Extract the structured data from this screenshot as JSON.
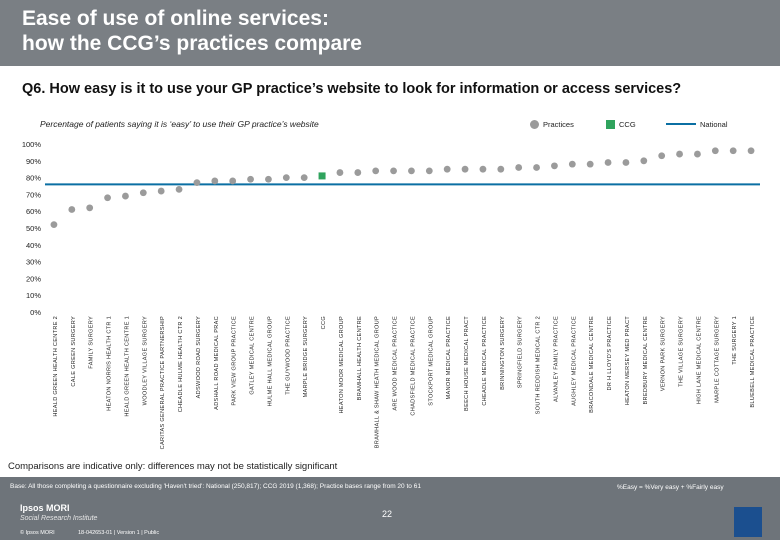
{
  "header": {
    "title_line1": "Ease of use of online services:",
    "title_line2": "how the CCG’s practices compare"
  },
  "question": "Q6. How easy is it to use your GP practice’s website to look for information or access services?",
  "subtitle": "Percentage of patients saying it is ‘easy’ to use their GP practice’s website",
  "legend": {
    "practices": "Practices",
    "ccg": "CCG",
    "national": "National"
  },
  "colors": {
    "practice": "#9b9b9b",
    "ccg": "#2fa35d",
    "national": "#0b6fa3",
    "header": "#7a7f84",
    "footer": "#6e747a"
  },
  "chart_data": {
    "type": "scatter",
    "title": "",
    "xlabel": "",
    "ylabel": "",
    "ylim": [
      0,
      100
    ],
    "yticks": [
      "0%",
      "10%",
      "20%",
      "30%",
      "40%",
      "50%",
      "60%",
      "70%",
      "80%",
      "90%",
      "100%"
    ],
    "national_value": 76,
    "categories": [
      "HEALD GREEN HEALTH CENTRE 2",
      "CALE GREEN SURGERY",
      "FAMILY SURGERY",
      "HEATON NORRIS HEALTH CTR 1",
      "HEALD GREEN HEALTH CENTRE 1",
      "WOODLEY VILLAGE SURGERY",
      "CARITAS GENERAL PRACTICE PARTNERSHIP",
      "CHEADLE HULME HEALTH CTR 2",
      "ADSWOOD ROAD SURGERY",
      "ADSHALL ROAD MEDICAL PRAC",
      "PARK VIEW GROUP PRACTICE",
      "GATLEY MEDICAL CENTRE",
      "HULME HALL MEDICAL GROUP",
      "THE GUYWOOD PRACTICE",
      "MARPLE BRIDGE SURGERY",
      "CCG",
      "HEATON MOOR MEDICAL GROUP",
      "BRAMHALL HEALTH CENTRE",
      "BRAMHALL & SHAW HEATH MEDICAL GROUP",
      "ARE WOOD MEDICAL PRACTICE",
      "CHADSFIELD MEDICAL PRACTICE",
      "STOCKPORT MEDICAL GROUP",
      "MANOR MEDICAL PRACTICE",
      "BEECH HOUSE MEDICAL PRACT",
      "CHEADLE MEDICAL PRACTICE",
      "BRINNINGTON SURGERY",
      "SPRINGFIELD SURGERY",
      "SOUTH REDDISH MEDICAL CTR 2",
      "ALVANLEY FAMILY PRACTICE",
      "AUGHLEY MEDICAL PRACTICE",
      "BRACONDALE MEDICAL CENTRE",
      "DR H LLOYD'S PRACTICE",
      "HEATON MERSEY MED PRACT",
      "BREDBURY MEDICAL CENTRE",
      "VERNON PARK SURGERY",
      "THE VILLAGE SURGERY",
      "HIGH LANE MEDICAL CENTRE",
      "MARPLE COTTAGE SURGERY",
      "THE SURGERY 1",
      "BLUEBELL MEDICAL PRACTICE"
    ],
    "series": [
      {
        "values": [
          52,
          61,
          62,
          68,
          69,
          71,
          72,
          73,
          77,
          78,
          78,
          79,
          79,
          80,
          80,
          81,
          83,
          83,
          84,
          84,
          84,
          84,
          85,
          85,
          85,
          85,
          86,
          86,
          87,
          88,
          88,
          89,
          89,
          90,
          93,
          94,
          94,
          96,
          96,
          96
        ]
      }
    ],
    "highlight": "CCG"
  },
  "disclaimer": "Comparisons are indicative only: differences may not be statistically significant",
  "footer": {
    "base": "Base: All those completing a questionnaire excluding 'Haven't tried': National (250,817); CCG 2019 (1,368); Practice bases range from 20 to 61",
    "key": "%Easy = %Very easy + %Fairly easy",
    "logo": "Ipsos MORI",
    "logo_sub": "Social Research Institute",
    "copyright": "© Ipsos MORI",
    "docref": "18-042653-01 | Version 1 | Public",
    "page": "22"
  }
}
